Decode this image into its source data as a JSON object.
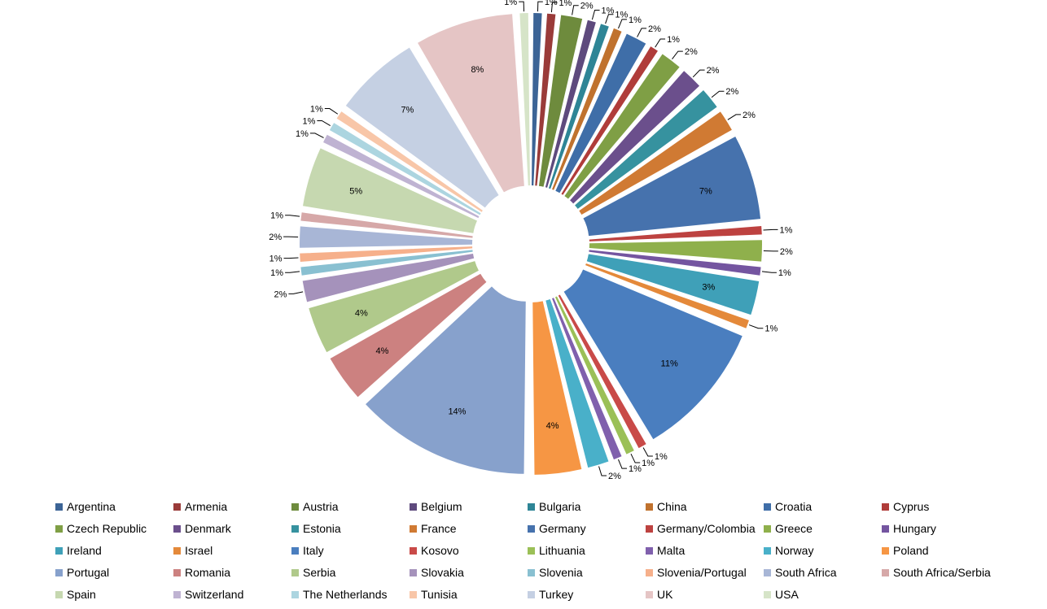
{
  "chart_data": {
    "type": "pie",
    "legend_position": "bottom",
    "exploded": true,
    "slices": [
      {
        "label": "Argentina",
        "value": 1,
        "color": "#3c6496"
      },
      {
        "label": "Armenia",
        "value": 1,
        "color": "#9a3b39"
      },
      {
        "label": "Austria",
        "value": 2,
        "color": "#6e8b3d"
      },
      {
        "label": "Belgium",
        "value": 1,
        "color": "#5e4a7d"
      },
      {
        "label": "Bulgaria",
        "value": 1,
        "color": "#2e8596"
      },
      {
        "label": "China",
        "value": 1,
        "color": "#c0722e"
      },
      {
        "label": "Croatia",
        "value": 2,
        "color": "#3f6ea8"
      },
      {
        "label": "Cyprus",
        "value": 1,
        "color": "#b03c3a"
      },
      {
        "label": "Czech Republic",
        "value": 2,
        "color": "#7f9f45"
      },
      {
        "label": "Denmark",
        "value": 2,
        "color": "#6b4f8c"
      },
      {
        "label": "Estonia",
        "value": 2,
        "color": "#36929f"
      },
      {
        "label": "France",
        "value": 2,
        "color": "#d07a33"
      },
      {
        "label": "Germany",
        "value": 7,
        "color": "#4672ad"
      },
      {
        "label": "Germany/Colombia",
        "value": 1,
        "color": "#bd4240"
      },
      {
        "label": "Greece",
        "value": 2,
        "color": "#8fb04c"
      },
      {
        "label": "Hungary",
        "value": 1,
        "color": "#7455a0"
      },
      {
        "label": "Ireland",
        "value": 3,
        "color": "#3fa0b8"
      },
      {
        "label": "Israel",
        "value": 1,
        "color": "#e4893a"
      },
      {
        "label": "Italy",
        "value": 11,
        "color": "#4a7ebf"
      },
      {
        "label": "Kosovo",
        "value": 1,
        "color": "#c94a48"
      },
      {
        "label": "Lithuania",
        "value": 1,
        "color": "#9bc057"
      },
      {
        "label": "Malta",
        "value": 1,
        "color": "#8060ad"
      },
      {
        "label": "Norway",
        "value": 2,
        "color": "#49b0c9"
      },
      {
        "label": "Poland",
        "value": 4,
        "color": "#f69644"
      },
      {
        "label": "Portugal",
        "value": 14,
        "color": "#87a1cc"
      },
      {
        "label": "Romania",
        "value": 4,
        "color": "#cc8180"
      },
      {
        "label": "Serbia",
        "value": 4,
        "color": "#b0c98b"
      },
      {
        "label": "Slovakia",
        "value": 2,
        "color": "#a592bb"
      },
      {
        "label": "Slovenia",
        "value": 1,
        "color": "#89c0d1"
      },
      {
        "label": "Slovenia/Portugal",
        "value": 1,
        "color": "#f6b08b"
      },
      {
        "label": "South Africa",
        "value": 2,
        "color": "#a8b6d6"
      },
      {
        "label": "South Africa/Serbia",
        "value": 1,
        "color": "#d6a8a8"
      },
      {
        "label": "Spain",
        "value": 5,
        "color": "#c6d8b0"
      },
      {
        "label": "Switzerland",
        "value": 1,
        "color": "#bfb3d2"
      },
      {
        "label": "The Netherlands",
        "value": 1,
        "color": "#acd5e0"
      },
      {
        "label": "Tunisia",
        "value": 1,
        "color": "#f8c6a8"
      },
      {
        "label": "Turkey",
        "value": 7,
        "color": "#c5d0e3"
      },
      {
        "label": "UK",
        "value": 8,
        "color": "#e5c5c5"
      },
      {
        "label": "USA",
        "value": 1,
        "color": "#d6e4c8"
      }
    ]
  }
}
